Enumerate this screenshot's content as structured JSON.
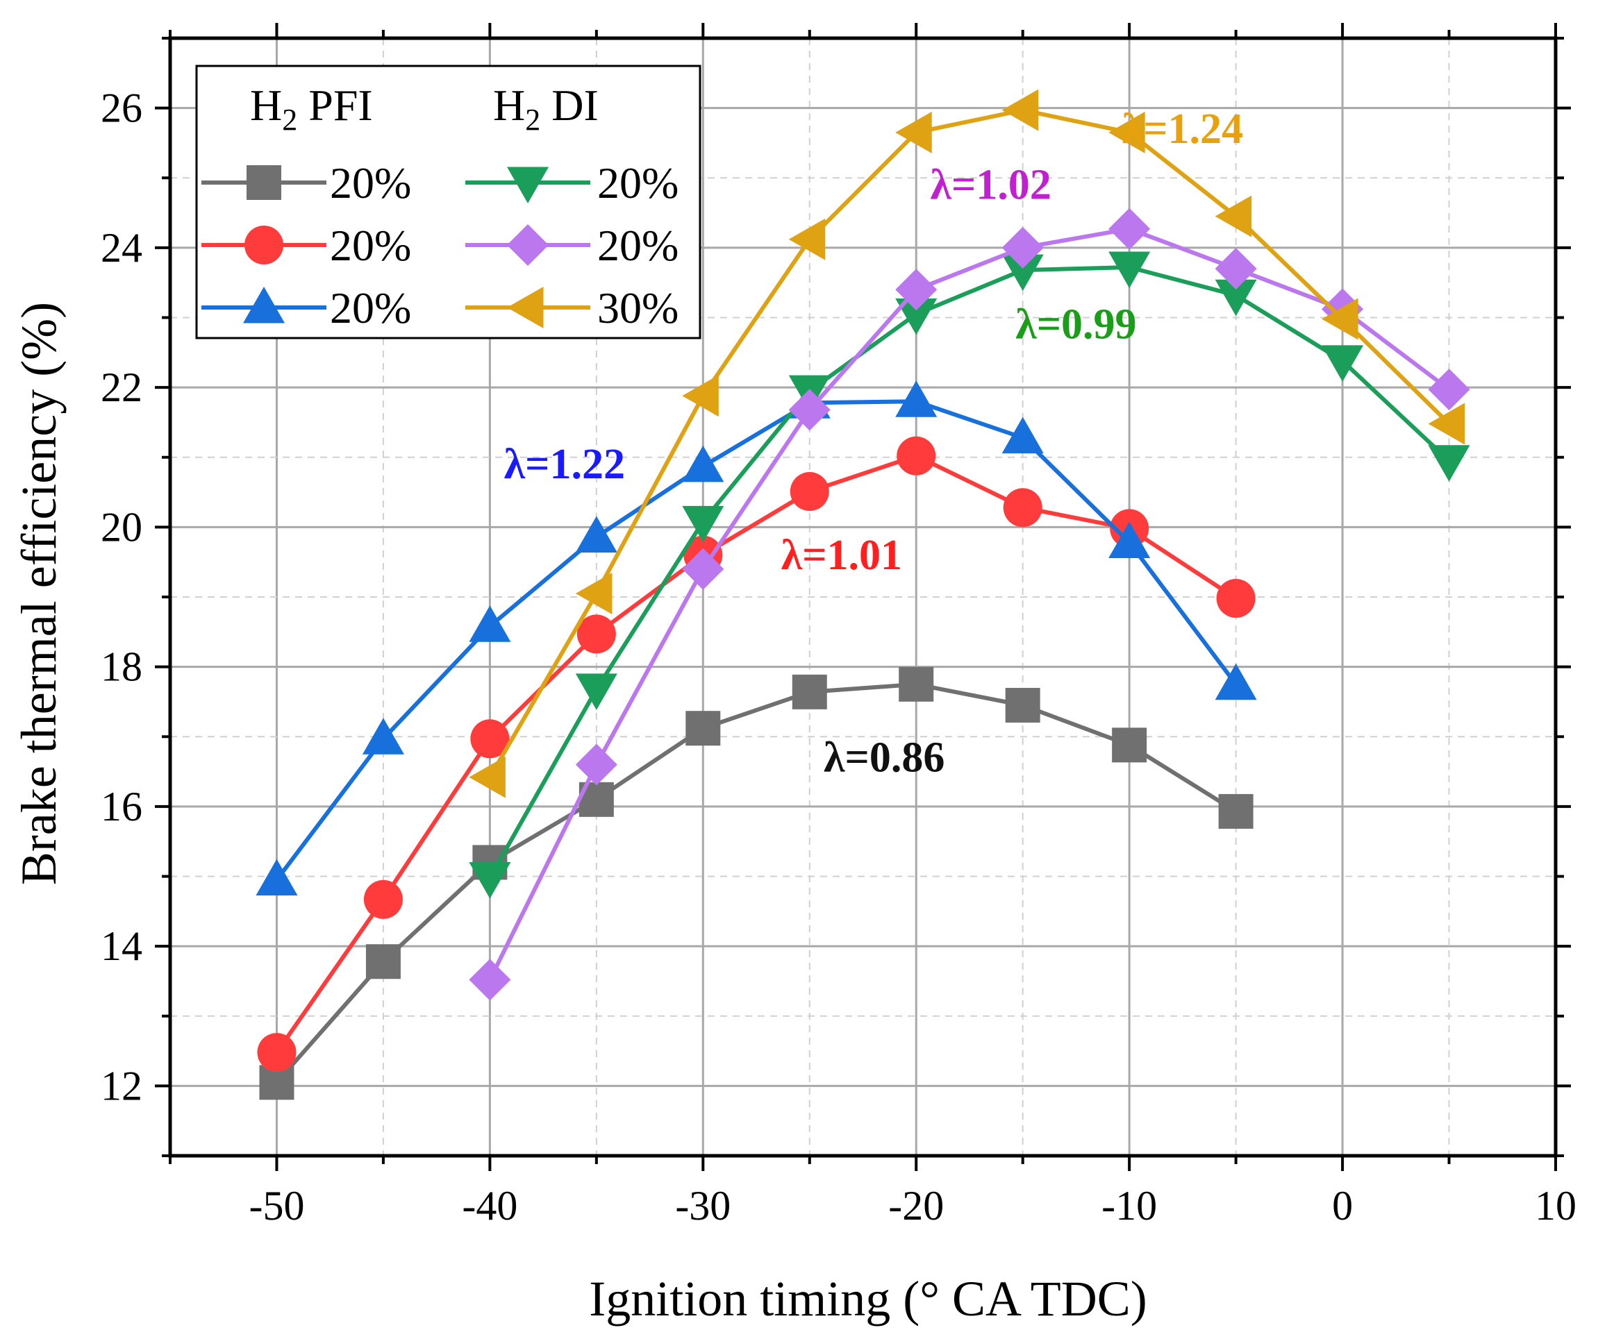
{
  "chart_data": {
    "type": "line",
    "xlabel": "Ignition timing (° CA TDC)",
    "ylabel": "Brake thermal efficiency (%)",
    "xlim": [
      -55,
      10
    ],
    "ylim": [
      11,
      27
    ],
    "xticks": [
      -50,
      -40,
      -30,
      -20,
      -10,
      0,
      10
    ],
    "yticks": [
      12,
      14,
      16,
      18,
      20,
      22,
      24,
      26
    ],
    "grid": true,
    "legend": {
      "placement": "top-left",
      "col1_title_main": "H",
      "col1_title_sub": "2",
      "col1_title_rest": " PFI",
      "col2_title_main": "H",
      "col2_title_sub": "2",
      "col2_title_rest": " DI"
    },
    "series": [
      {
        "name": "H2 PFI 20% (λ=0.86)",
        "legend_label": "20%",
        "color": "#707070",
        "marker": "square",
        "x": [
          -50,
          -45,
          -40,
          -35,
          -30,
          -25,
          -20,
          -15,
          -10,
          -5
        ],
        "y": [
          12.05,
          13.78,
          15.2,
          16.1,
          17.12,
          17.64,
          17.75,
          17.45,
          16.88,
          15.93
        ]
      },
      {
        "name": "H2 PFI 20% (λ=1.01)",
        "legend_label": "20%",
        "color": "#ff3b3b",
        "marker": "circle",
        "x": [
          -50,
          -45,
          -40,
          -35,
          -30,
          -25,
          -20,
          -15,
          -10,
          -5
        ],
        "y": [
          12.48,
          14.67,
          16.97,
          18.47,
          19.6,
          20.51,
          21.02,
          20.28,
          19.98,
          18.98
        ]
      },
      {
        "name": "H2 PFI 20% (λ=1.22)",
        "legend_label": "20%",
        "color": "#1870dc",
        "marker": "triangle-up",
        "x": [
          -50,
          -45,
          -40,
          -35,
          -30,
          -25,
          -20,
          -15,
          -10,
          -5
        ],
        "y": [
          14.95,
          16.97,
          18.58,
          19.86,
          20.87,
          21.78,
          21.8,
          21.28,
          19.78,
          17.75
        ]
      },
      {
        "name": "H2 DI 20% (λ=0.99)",
        "legend_label": "20%",
        "color": "#1a9e5a",
        "marker": "triangle-down",
        "x": [
          -40,
          -35,
          -30,
          -25,
          -20,
          -15,
          -10,
          -5,
          0,
          5
        ],
        "y": [
          14.98,
          17.68,
          20.08,
          21.95,
          23.05,
          23.68,
          23.72,
          23.32,
          22.38,
          20.95
        ]
      },
      {
        "name": "H2 DI 20% (λ=1.02)",
        "legend_label": "20%",
        "color": "#bb77ee",
        "marker": "diamond",
        "x": [
          -40,
          -35,
          -30,
          -25,
          -20,
          -15,
          -10,
          -5,
          0,
          5
        ],
        "y": [
          13.52,
          16.6,
          19.4,
          21.68,
          23.4,
          24.0,
          24.27,
          23.7,
          23.12,
          21.97
        ]
      },
      {
        "name": "H2 DI 30% (λ=1.24)",
        "legend_label": "30%",
        "color": "#dea212",
        "marker": "triangle-left",
        "x": [
          -40,
          -35,
          -30,
          -25,
          -20,
          -15,
          -10,
          -5,
          0,
          5
        ],
        "y": [
          16.42,
          19.05,
          21.88,
          24.12,
          25.65,
          25.97,
          25.65,
          24.45,
          22.98,
          21.48
        ]
      }
    ],
    "annotations": [
      {
        "text": "λ=0.86",
        "color": "#111111",
        "x": -21.5,
        "y": 16.5
      },
      {
        "text": "λ=1.01",
        "color": "#ff1f1f",
        "x": -23.5,
        "y": 19.4
      },
      {
        "text": "λ=1.22",
        "color": "#1a1aff",
        "x": -36.5,
        "y": 20.7
      },
      {
        "text": "λ=0.99",
        "color": "#1a9e1a",
        "x": -12.5,
        "y": 22.7
      },
      {
        "text": "λ=1.02",
        "color": "#c020d0",
        "x": -16.5,
        "y": 24.7
      },
      {
        "text": "λ=1.24",
        "color": "#e8a10c",
        "x": -7.5,
        "y": 25.5
      }
    ]
  }
}
